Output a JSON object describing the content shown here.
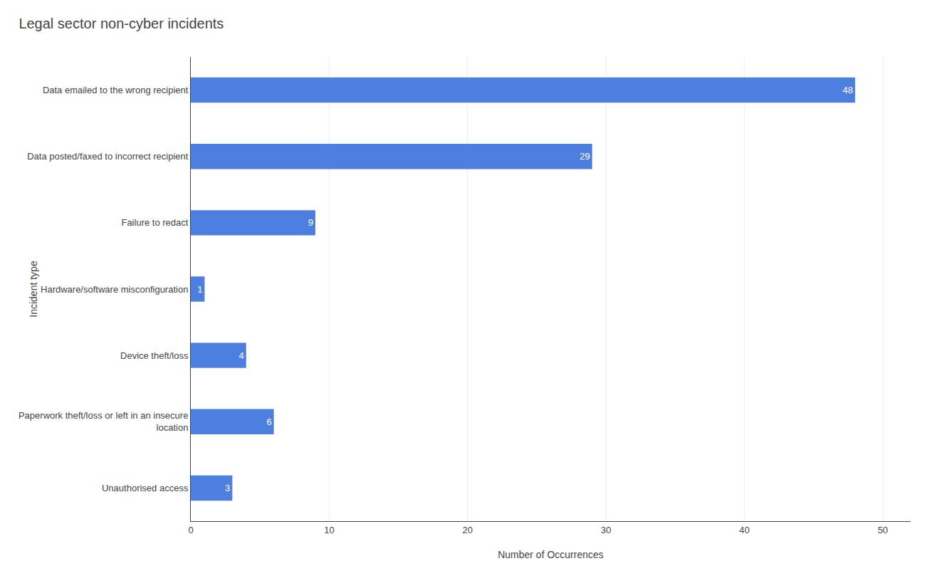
{
  "chart_data": {
    "type": "bar",
    "title": "Legal sector non-cyber incidents",
    "categories": [
      "Unauthorised access",
      "Paperwork theft/loss or left in an insecure\nlocation",
      "Device theft/loss",
      "Hardware/software misconfiguration",
      "Failure to redact",
      "Data posted/faxed to incorrect recipient",
      "Data emailed to the wrong recipient"
    ],
    "values": [
      3,
      6,
      4,
      1,
      9,
      29,
      48
    ],
    "color": "#4d7fe0",
    "orientation": "horizontal",
    "xlabel": "Number of Occurrences",
    "ylabel": "Incident type",
    "xlim": [
      0,
      52
    ],
    "xticks": [
      0,
      10,
      20,
      30,
      40,
      50
    ],
    "grid": true,
    "data_labels": true
  }
}
